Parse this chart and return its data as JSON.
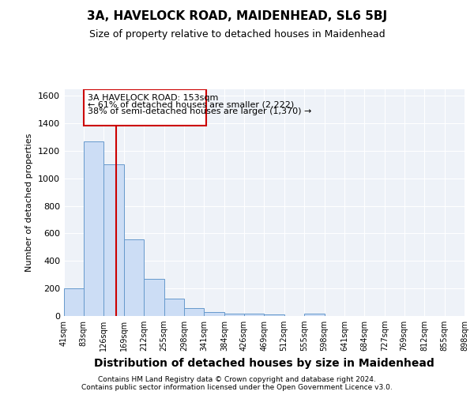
{
  "title": "3A, HAVELOCK ROAD, MAIDENHEAD, SL6 5BJ",
  "subtitle": "Size of property relative to detached houses in Maidenhead",
  "xlabel": "Distribution of detached houses by size in Maidenhead",
  "ylabel": "Number of detached properties",
  "footer_line1": "Contains HM Land Registry data © Crown copyright and database right 2024.",
  "footer_line2": "Contains public sector information licensed under the Open Government Licence v3.0.",
  "bar_values": [
    200,
    1270,
    1100,
    555,
    270,
    125,
    55,
    30,
    20,
    15,
    10,
    0,
    20,
    0,
    0,
    0,
    0,
    0,
    0,
    0
  ],
  "bin_edges": [
    41,
    83,
    126,
    169,
    212,
    255,
    298,
    341,
    384,
    426,
    469,
    512,
    555,
    598,
    641,
    684,
    727,
    769,
    812,
    855,
    898
  ],
  "bin_labels": [
    "41sqm",
    "83sqm",
    "126sqm",
    "169sqm",
    "212sqm",
    "255sqm",
    "298sqm",
    "341sqm",
    "384sqm",
    "426sqm",
    "469sqm",
    "512sqm",
    "555sqm",
    "598sqm",
    "641sqm",
    "684sqm",
    "727sqm",
    "769sqm",
    "812sqm",
    "855sqm",
    "898sqm"
  ],
  "bar_color": "#ccddf5",
  "bar_edge_color": "#6699cc",
  "property_size": 153,
  "annotation_line1": "3A HAVELOCK ROAD: 153sqm",
  "annotation_line2": "← 61% of detached houses are smaller (2,222)",
  "annotation_line3": "38% of semi-detached houses are larger (1,370) →",
  "vline_color": "#cc0000",
  "annotation_box_edgecolor": "#cc0000",
  "annotation_box_facecolor": "#ffffff",
  "ylim": [
    0,
    1650
  ],
  "yticks": [
    0,
    200,
    400,
    600,
    800,
    1000,
    1200,
    1400,
    1600
  ],
  "bg_color": "#ffffff",
  "plot_bg_color": "#eef2f8",
  "grid_color": "#ffffff",
  "title_fontsize": 11,
  "subtitle_fontsize": 9,
  "xlabel_fontsize": 10,
  "ylabel_fontsize": 8
}
